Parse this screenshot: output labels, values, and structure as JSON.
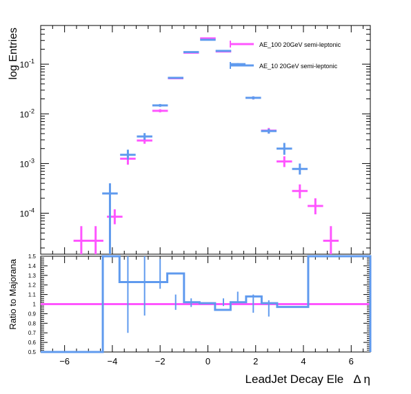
{
  "chart_data": [
    {
      "type": "line",
      "ylabel": "log Entries",
      "y_scale": "log",
      "xlim": [
        -7,
        6.8
      ],
      "ylim": [
        1.5e-05,
        0.6
      ],
      "x_ticks": [
        -6,
        -4,
        -2,
        0,
        2,
        4,
        6
      ],
      "y_ticks": [
        {
          "value": 0.0001,
          "mantissa": "10",
          "exp": "-4"
        },
        {
          "value": 0.001,
          "mantissa": "10",
          "exp": "-3"
        },
        {
          "value": 0.01,
          "mantissa": "10",
          "exp": "-2"
        },
        {
          "value": 0.1,
          "mantissa": "10",
          "exp": "-1"
        }
      ],
      "legend_position": "top-right",
      "series": [
        {
          "name": "AE_100 20GeV semi-leptonic",
          "color": "#ff55ff",
          "points": [
            {
              "x": -5.3,
              "y": 2.8e-05,
              "yerr": [
                1.5e-05,
                5.5e-05
              ]
            },
            {
              "x": -4.7,
              "y": 2.8e-05,
              "yerr": [
                1.5e-05,
                5.5e-05
              ]
            },
            {
              "x": -3.9,
              "y": 8.5e-05,
              "yerr": [
                6e-05,
                0.00012
              ]
            },
            {
              "x": -3.35,
              "y": 0.00125,
              "yerr": [
                0.00095,
                0.0016
              ]
            },
            {
              "x": -2.65,
              "y": 0.0029,
              "yerr": [
                0.0025,
                0.0034
              ]
            },
            {
              "x": -2.0,
              "y": 0.0115,
              "yerr": [
                0.0107,
                0.0124
              ]
            },
            {
              "x": -1.35,
              "y": 0.052,
              "yerr": [
                0.05,
                0.054
              ]
            },
            {
              "x": -0.7,
              "y": 0.17,
              "yerr": [
                0.165,
                0.175
              ]
            },
            {
              "x": 0.0,
              "y": 0.33,
              "yerr": [
                0.32,
                0.34
              ]
            },
            {
              "x": 0.65,
              "y": 0.18,
              "yerr": [
                0.175,
                0.185
              ]
            },
            {
              "x": 1.25,
              "y": 0.095,
              "yerr": [
                0.09,
                0.1
              ]
            },
            {
              "x": 1.9,
              "y": 0.021,
              "yerr": [
                0.0195,
                0.0225
              ]
            },
            {
              "x": 2.55,
              "y": 0.0046,
              "yerr": [
                0.004,
                0.0052
              ]
            },
            {
              "x": 3.2,
              "y": 0.0011,
              "yerr": [
                0.00085,
                0.0014
              ]
            },
            {
              "x": 3.85,
              "y": 0.00028,
              "yerr": [
                0.0002,
                0.00038
              ]
            },
            {
              "x": 4.5,
              "y": 0.00014,
              "yerr": [
                9.5e-05,
                0.0002
              ]
            },
            {
              "x": 5.15,
              "y": 2.8e-05,
              "yerr": [
                1.5e-05,
                5.5e-05
              ]
            }
          ]
        },
        {
          "name": "AE_10 20GeV semi-leptonic",
          "color": "#5f9aee",
          "points": [
            {
              "x": -4.1,
              "y": 0.00025,
              "yerr": [
                1.5e-05,
                0.0004
              ]
            },
            {
              "x": -3.35,
              "y": 0.0015,
              "yerr": [
                0.0012,
                0.0019
              ]
            },
            {
              "x": -2.65,
              "y": 0.0035,
              "yerr": [
                0.003,
                0.0041
              ]
            },
            {
              "x": -2.0,
              "y": 0.0148,
              "yerr": [
                0.0138,
                0.0158
              ]
            },
            {
              "x": -1.35,
              "y": 0.053,
              "yerr": [
                0.051,
                0.055
              ]
            },
            {
              "x": -0.7,
              "y": 0.175,
              "yerr": [
                0.17,
                0.18
              ]
            },
            {
              "x": 0.0,
              "y": 0.31,
              "yerr": [
                0.3,
                0.32
              ]
            },
            {
              "x": 0.65,
              "y": 0.185,
              "yerr": [
                0.18,
                0.19
              ]
            },
            {
              "x": 1.25,
              "y": 0.1,
              "yerr": [
                0.095,
                0.105
              ]
            },
            {
              "x": 1.9,
              "y": 0.021,
              "yerr": [
                0.0195,
                0.0225
              ]
            },
            {
              "x": 2.55,
              "y": 0.0045,
              "yerr": [
                0.004,
                0.005
              ]
            },
            {
              "x": 3.2,
              "y": 0.002,
              "yerr": [
                0.0015,
                0.0026
              ]
            },
            {
              "x": 3.85,
              "y": 0.00078,
              "yerr": [
                0.0006,
                0.001
              ]
            }
          ]
        }
      ]
    },
    {
      "type": "line",
      "ylabel": "Ratio to Majorana",
      "xlabel": "LeadJet Decay Ele   Δ η",
      "xlim": [
        -7,
        6.8
      ],
      "ylim": [
        0.5,
        1.5
      ],
      "x_ticks": [
        -6,
        -4,
        -2,
        0,
        2,
        4,
        6
      ],
      "x_tick_labels": [
        "−6",
        "−4",
        "−2",
        "0",
        "2",
        "4",
        "6"
      ],
      "y_ticks": [
        0.5,
        0.6,
        0.7,
        0.8,
        0.9,
        1.0,
        1.1,
        1.2,
        1.3,
        1.4,
        1.5
      ],
      "y_tick_labels": [
        "0.5",
        "0.6",
        "0.7",
        "0.8",
        "0.9",
        "1",
        "1.1",
        "1.2",
        "1.3",
        "1.4",
        "1.5"
      ],
      "reference": {
        "y": 1.0,
        "color": "#ff55ff"
      },
      "series": [
        {
          "color": "#5f9aee",
          "edges": [
            -7,
            -4.4,
            -3.7,
            -2.35,
            -1.7,
            -1.0,
            -0.35,
            0.3,
            0.95,
            1.6,
            2.25,
            2.9,
            4.2,
            6.8
          ],
          "values": [
            0.5,
            1.5,
            1.23,
            1.23,
            1.32,
            1.02,
            1.01,
            0.94,
            1.02,
            1.08,
            1.01,
            0.97,
            1.5,
            0.5
          ],
          "errors": [
            null,
            null,
            {
              "x": -3.35,
              "lo": 0.7,
              "hi": 1.5
            },
            {
              "x": -2.65,
              "lo": 0.88,
              "hi": 1.5
            },
            {
              "x": -2.0,
              "lo": 1.16,
              "hi": 1.47
            },
            {
              "x": -1.35,
              "lo": 0.94,
              "hi": 1.1
            },
            {
              "x": -0.7,
              "lo": 0.97,
              "hi": 1.06
            },
            null,
            {
              "x": 0.65,
              "lo": 0.98,
              "hi": 1.06
            },
            {
              "x": 1.25,
              "lo": 1.02,
              "hi": 1.13
            },
            {
              "x": 1.9,
              "lo": 0.91,
              "hi": 1.1
            },
            {
              "x": 2.55,
              "lo": 0.87,
              "hi": 1.04
            },
            null,
            null
          ]
        }
      ]
    }
  ]
}
